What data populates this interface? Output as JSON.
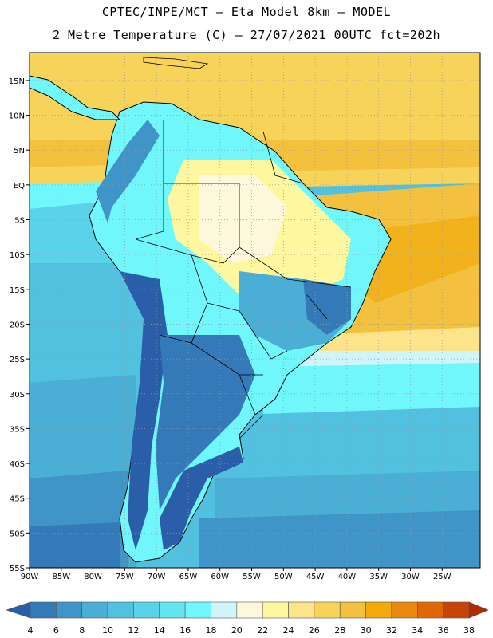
{
  "title_line1": "CPTEC/INPE/MCT —  Eta Model 8km — MODEL",
  "title_line2": "2 Metre Temperature (C) — 27/07/2021 00UTC fct=202h",
  "map": {
    "lon_range": [
      -90,
      -19
    ],
    "lat_range": [
      -55,
      19
    ],
    "lat_ticks": [
      "15N",
      "10N",
      "5N",
      "EQ",
      "5S",
      "10S",
      "15S",
      "20S",
      "25S",
      "30S",
      "35S",
      "40S",
      "45S",
      "50S",
      "55S"
    ],
    "lon_ticks": [
      "90W",
      "85W",
      "80W",
      "75W",
      "70W",
      "65W",
      "60W",
      "55W",
      "50W",
      "45W",
      "40W",
      "35W",
      "30W",
      "25W"
    ],
    "grid": "dotted"
  },
  "colorbar": {
    "labels": [
      "4",
      "6",
      "8",
      "10",
      "12",
      "14",
      "16",
      "18",
      "20",
      "22",
      "24",
      "26",
      "28",
      "30",
      "32",
      "34",
      "36",
      "38"
    ],
    "colors": [
      "#2a5ea8",
      "#3479b8",
      "#3f94c8",
      "#4aaed5",
      "#52c1e0",
      "#5ad3ea",
      "#63e6f2",
      "#6ff7fb",
      "#cff5fb",
      "#fff7dc",
      "#fff7a0",
      "#fde38a",
      "#f8d35a",
      "#f3c13d",
      "#f2a90a",
      "#e98a0e",
      "#df6706",
      "#c84406",
      "#b02a06"
    ]
  }
}
